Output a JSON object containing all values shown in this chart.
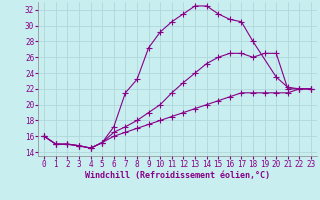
{
  "xlabel": "Windchill (Refroidissement éolien,°C)",
  "bg_color": "#c8eef0",
  "grid_color": "#b0d8dc",
  "line_color": "#880088",
  "xlim": [
    -0.5,
    23.5
  ],
  "ylim": [
    13.5,
    33.0
  ],
  "yticks": [
    14,
    16,
    18,
    20,
    22,
    24,
    26,
    28,
    30,
    32
  ],
  "xticks": [
    0,
    1,
    2,
    3,
    4,
    5,
    6,
    7,
    8,
    9,
    10,
    11,
    12,
    13,
    14,
    15,
    16,
    17,
    18,
    19,
    20,
    21,
    22,
    23
  ],
  "line1_x": [
    0,
    1,
    2,
    3,
    4,
    5,
    6,
    7,
    8,
    9,
    10,
    11,
    12,
    13,
    14,
    15,
    16,
    17,
    18,
    20,
    21,
    22,
    23
  ],
  "line1_y": [
    16.0,
    15.0,
    15.0,
    14.8,
    14.5,
    15.2,
    17.2,
    21.5,
    23.2,
    27.2,
    29.2,
    30.5,
    31.5,
    32.5,
    32.5,
    31.5,
    30.8,
    30.5,
    28.0,
    23.5,
    22.2,
    22.0,
    22.0
  ],
  "line2_x": [
    0,
    1,
    2,
    3,
    4,
    5,
    6,
    7,
    8,
    9,
    10,
    11,
    12,
    13,
    14,
    15,
    16,
    17,
    18,
    19,
    20,
    21,
    22,
    23
  ],
  "line2_y": [
    16.0,
    15.0,
    15.0,
    14.8,
    14.5,
    15.2,
    16.5,
    17.2,
    18.0,
    19.0,
    20.0,
    21.5,
    22.8,
    24.0,
    25.2,
    26.0,
    26.5,
    26.5,
    26.0,
    26.5,
    26.5,
    22.0,
    22.0,
    22.0
  ],
  "line3_x": [
    0,
    1,
    2,
    3,
    4,
    5,
    6,
    7,
    8,
    9,
    10,
    11,
    12,
    13,
    14,
    15,
    16,
    17,
    18,
    19,
    20,
    21,
    22,
    23
  ],
  "line3_y": [
    16.0,
    15.0,
    15.0,
    14.8,
    14.5,
    15.2,
    16.0,
    16.5,
    17.0,
    17.5,
    18.0,
    18.5,
    19.0,
    19.5,
    20.0,
    20.5,
    21.0,
    21.5,
    21.5,
    21.5,
    21.5,
    21.5,
    22.0,
    22.0
  ],
  "marker": "+",
  "markersize": 4,
  "linewidth": 0.8,
  "xlabel_fontsize": 6,
  "tick_fontsize": 5.5
}
